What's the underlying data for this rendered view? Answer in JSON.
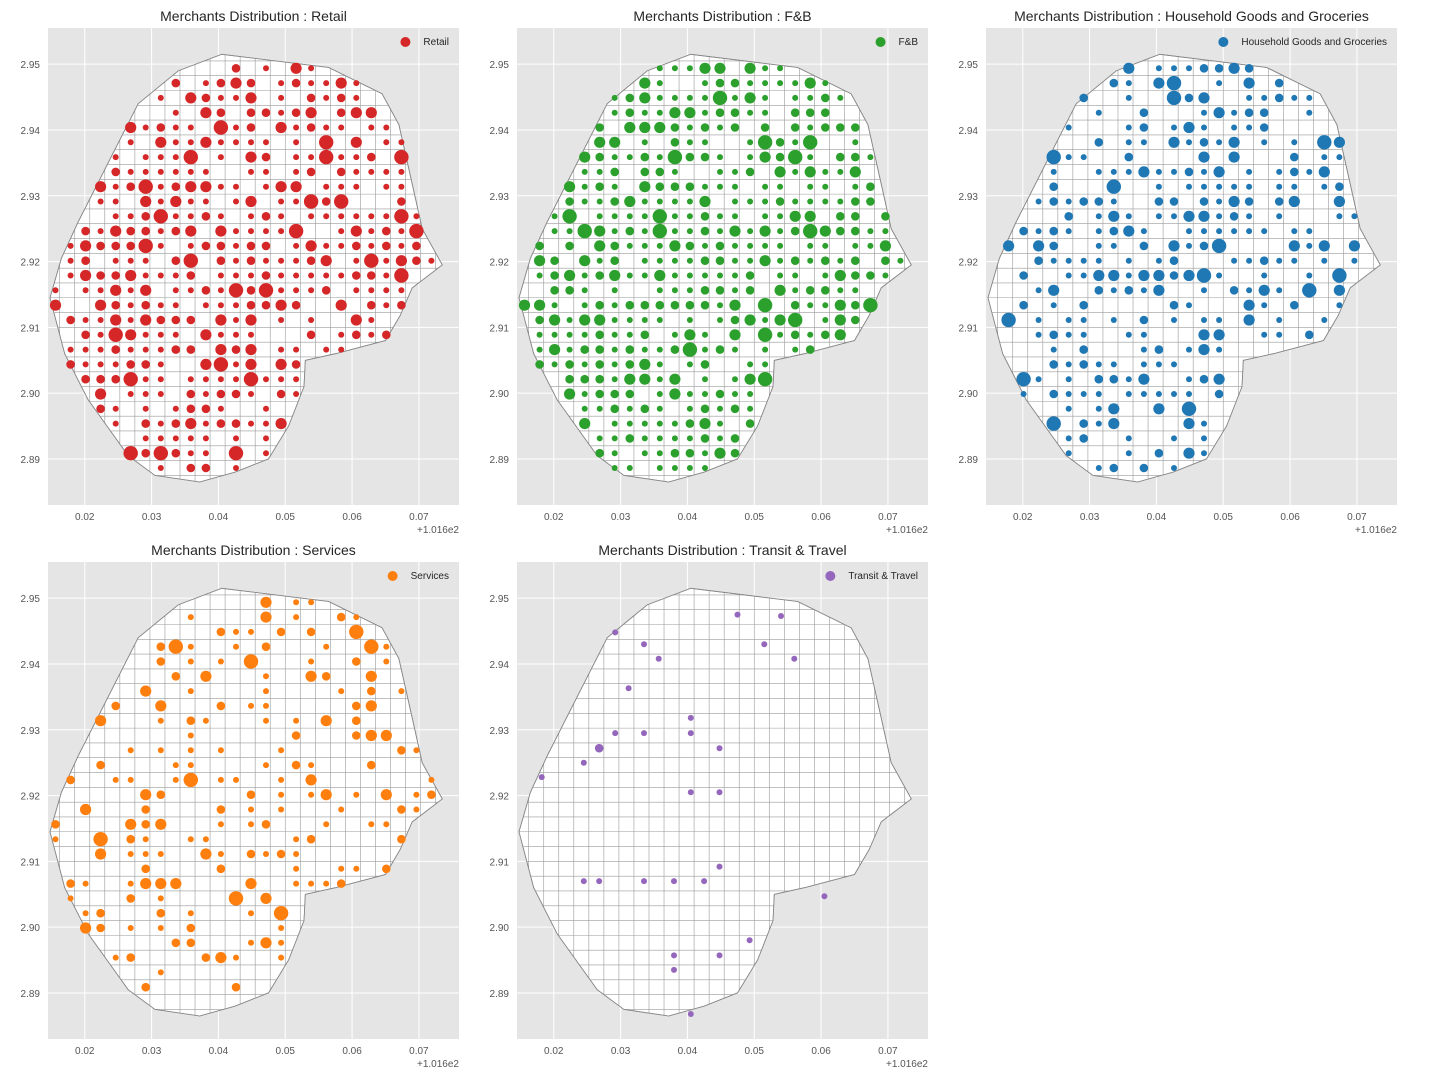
{
  "figure": {
    "offset_text": "+1.016e2"
  },
  "chart_data": [
    {
      "type": "scatter",
      "title": "Merchants Distribution : Retail",
      "legend": "Retail",
      "legend_position": "top-right",
      "color": "#d62728",
      "xticks": [
        "0.02",
        "0.03",
        "0.04",
        "0.05",
        "0.06",
        "0.07"
      ],
      "yticks": [
        "2.95",
        "2.94",
        "2.93",
        "2.92",
        "2.91",
        "2.90",
        "2.89"
      ],
      "xlim": [
        101.6145,
        101.676
      ],
      "ylim": [
        2.883,
        2.9555
      ],
      "grid": true,
      "density": 0.78,
      "seed": 11
    },
    {
      "type": "scatter",
      "title": "Merchants Distribution : F&B",
      "legend": "F&B",
      "legend_position": "top-right",
      "color": "#2ca02c",
      "xticks": [
        "0.02",
        "0.03",
        "0.04",
        "0.05",
        "0.06",
        "0.07"
      ],
      "yticks": [
        "2.95",
        "2.94",
        "2.93",
        "2.92",
        "2.91",
        "2.90",
        "2.89"
      ],
      "xlim": [
        101.6145,
        101.676
      ],
      "ylim": [
        2.883,
        2.9555
      ],
      "grid": true,
      "density": 0.8,
      "seed": 23
    },
    {
      "type": "scatter",
      "title": "Merchants Distribution : Household Goods and Groceries",
      "legend": "Household Goods and Groceries",
      "legend_position": "top-right",
      "color": "#1f77b4",
      "xticks": [
        "0.02",
        "0.03",
        "0.04",
        "0.05",
        "0.06",
        "0.07"
      ],
      "yticks": [
        "2.95",
        "2.94",
        "2.93",
        "2.92",
        "2.91",
        "2.90",
        "2.89"
      ],
      "xlim": [
        101.6145,
        101.676
      ],
      "ylim": [
        2.883,
        2.9555
      ],
      "grid": true,
      "density": 0.55,
      "seed": 37
    },
    {
      "type": "scatter",
      "title": "Merchants Distribution : Services",
      "legend": "Services",
      "legend_position": "top-right",
      "color": "#ff7f0e",
      "xticks": [
        "0.02",
        "0.03",
        "0.04",
        "0.05",
        "0.06",
        "0.07"
      ],
      "yticks": [
        "2.95",
        "2.94",
        "2.93",
        "2.92",
        "2.91",
        "2.90",
        "2.89"
      ],
      "xlim": [
        101.6145,
        101.676
      ],
      "ylim": [
        2.883,
        2.9555
      ],
      "grid": true,
      "density": 0.36,
      "seed": 51
    },
    {
      "type": "scatter",
      "title": "Merchants Distribution : Transit & Travel",
      "legend": "Transit & Travel",
      "legend_position": "top-right",
      "color": "#9467bd",
      "xticks": [
        "0.02",
        "0.03",
        "0.04",
        "0.05",
        "0.06",
        "0.07"
      ],
      "yticks": [
        "2.95",
        "2.94",
        "2.93",
        "2.92",
        "2.91",
        "2.90",
        "2.89"
      ],
      "xlim": [
        101.6145,
        101.676
      ],
      "ylim": [
        2.883,
        2.9555
      ],
      "grid": true,
      "points": [
        [
          101.6292,
          2.9448
        ],
        [
          101.6335,
          2.943
        ],
        [
          101.6357,
          2.9408
        ],
        [
          101.6312,
          2.9363
        ],
        [
          101.6475,
          2.9475
        ],
        [
          101.6515,
          2.943
        ],
        [
          101.656,
          2.9408
        ],
        [
          101.654,
          2.9473
        ],
        [
          101.6405,
          2.9318
        ],
        [
          101.6405,
          2.9295
        ],
        [
          101.6448,
          2.9272
        ],
        [
          101.6335,
          2.9295
        ],
        [
          101.6292,
          2.9295
        ],
        [
          101.6268,
          2.9272
        ],
        [
          101.6245,
          2.925
        ],
        [
          101.6182,
          2.9228
        ],
        [
          101.6405,
          2.9205
        ],
        [
          101.6448,
          2.9205
        ],
        [
          101.6448,
          2.9092
        ],
        [
          101.6245,
          2.907
        ],
        [
          101.6268,
          2.907
        ],
        [
          101.6335,
          2.907
        ],
        [
          101.638,
          2.907
        ],
        [
          101.6425,
          2.907
        ],
        [
          101.6605,
          2.9047
        ],
        [
          101.6493,
          2.898
        ],
        [
          101.638,
          2.8957
        ],
        [
          101.6448,
          2.8957
        ],
        [
          101.638,
          2.8935
        ],
        [
          101.6405,
          2.8868
        ]
      ],
      "sizes": [
        1,
        1,
        1,
        1,
        1,
        1,
        1,
        1,
        1,
        1,
        1,
        1,
        1,
        2,
        1,
        1,
        1,
        1,
        1,
        1,
        1,
        1,
        1,
        1,
        1,
        1,
        1,
        1,
        1,
        1
      ]
    }
  ],
  "boundary": [
    [
      101.6405,
      2.9515
    ],
    [
      101.6565,
      2.9495
    ],
    [
      101.6645,
      2.9455
    ],
    [
      101.667,
      2.9408
    ],
    [
      101.669,
      2.9318
    ],
    [
      101.6705,
      2.925
    ],
    [
      101.6735,
      2.9195
    ],
    [
      101.669,
      2.916
    ],
    [
      101.6672,
      2.9118
    ],
    [
      101.665,
      2.908
    ],
    [
      101.6575,
      2.906
    ],
    [
      101.653,
      2.905
    ],
    [
      101.6528,
      2.901
    ],
    [
      101.6505,
      2.895
    ],
    [
      101.6475,
      2.89
    ],
    [
      101.6425,
      2.888
    ],
    [
      101.6372,
      2.8865
    ],
    [
      101.6305,
      2.8875
    ],
    [
      101.6265,
      2.8905
    ],
    [
      101.6205,
      2.899
    ],
    [
      101.617,
      2.906
    ],
    [
      101.6148,
      2.9145
    ],
    [
      101.6165,
      2.9205
    ],
    [
      101.619,
      2.926
    ],
    [
      101.6235,
      2.935
    ],
    [
      101.628,
      2.944
    ],
    [
      101.634,
      2.949
    ]
  ]
}
